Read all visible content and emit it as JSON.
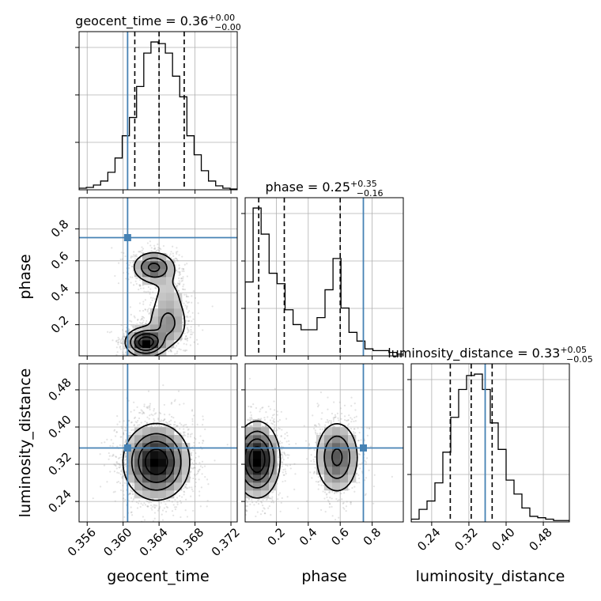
{
  "colors": {
    "truth": "#4682b4",
    "hist": "#000000",
    "quantile": "#000000",
    "grid": "#b0b0b0",
    "samples": "#999999"
  },
  "parameters": [
    {
      "key": "geocent_time",
      "label": "geocent_time",
      "ticks": [
        "0.356",
        "0.360",
        "0.364",
        "0.368",
        "0.372"
      ],
      "tick_values": [
        0.356,
        0.36,
        0.364,
        0.368,
        0.372
      ],
      "range": [
        0.3551,
        0.3727
      ],
      "truth": 0.3605
    },
    {
      "key": "phase",
      "label": "phase",
      "ticks": [
        "0.2",
        "0.4",
        "0.6",
        "0.8"
      ],
      "tick_values": [
        0.2,
        0.4,
        0.6,
        0.8
      ],
      "range": [
        0.005,
        0.995
      ],
      "truth": 0.745
    },
    {
      "key": "luminosity_distance",
      "label": "luminosity_distance",
      "ticks": [
        "0.24",
        "0.32",
        "0.40",
        "0.48"
      ],
      "tick_values": [
        0.24,
        0.32,
        0.4,
        0.48
      ],
      "range": [
        0.196,
        0.536
      ],
      "truth": 0.355
    }
  ],
  "titles": [
    {
      "text": "geocent_time = 0.36",
      "sup": "+0.00",
      "sub": "−0.00"
    },
    {
      "text": "phase = 0.25",
      "sup": "+0.35",
      "sub": "−0.16"
    },
    {
      "text": "luminosity_distance = 0.33",
      "sup": "+0.05",
      "sub": "−0.05"
    }
  ],
  "chart_data": {
    "type": "corner",
    "title": "",
    "marginals": [
      {
        "parameter": "geocent_time",
        "quantiles": [
          0.3613,
          0.364,
          0.3668
        ],
        "bin_edges": [
          0.3551,
          0.3559,
          0.3567,
          0.3575,
          0.3583,
          0.3591,
          0.3599,
          0.3607,
          0.3615,
          0.3623,
          0.3631,
          0.3639,
          0.3647,
          0.3655,
          0.3663,
          0.3671,
          0.3679,
          0.3687,
          0.3695,
          0.3703,
          0.3711,
          0.3719,
          0.3727
        ],
        "counts": [
          2,
          3,
          6,
          11,
          22,
          40,
          68,
          91,
          130,
          172,
          186,
          184,
          172,
          143,
          117,
          68,
          44,
          24,
          11,
          5,
          2,
          1
        ]
      },
      {
        "parameter": "phase",
        "quantiles": [
          0.09,
          0.25,
          0.6
        ],
        "bin_edges": [
          0.005,
          0.055,
          0.105,
          0.155,
          0.205,
          0.255,
          0.305,
          0.355,
          0.405,
          0.455,
          0.505,
          0.555,
          0.605,
          0.655,
          0.705,
          0.755,
          0.805,
          0.855,
          0.905,
          0.955,
          0.995
        ],
        "counts": [
          85,
          170,
          140,
          95,
          83,
          53,
          36,
          30,
          30,
          44,
          76,
          112,
          55,
          27,
          17,
          8,
          6,
          6,
          4,
          2
        ]
      },
      {
        "parameter": "luminosity_distance",
        "quantiles": [
          0.28,
          0.325,
          0.37
        ],
        "bin_edges": [
          0.196,
          0.213,
          0.23,
          0.247,
          0.264,
          0.281,
          0.298,
          0.315,
          0.332,
          0.349,
          0.366,
          0.383,
          0.4,
          0.417,
          0.434,
          0.451,
          0.468,
          0.485,
          0.502,
          0.519,
          0.536
        ],
        "counts": [
          2,
          9,
          15,
          28,
          50,
          75,
          95,
          105,
          106,
          95,
          71,
          52,
          30,
          20,
          10,
          4,
          3,
          2,
          1,
          1
        ]
      }
    ],
    "joints": [
      {
        "x": "geocent_time",
        "y": "phase",
        "modes": [
          {
            "x": 0.3634,
            "y": 0.56,
            "sx": 0.0012,
            "sy": 0.05,
            "w": 0.6
          },
          {
            "x": 0.3625,
            "y": 0.09,
            "sx": 0.0011,
            "sy": 0.045,
            "w": 1.0
          },
          {
            "x": 0.365,
            "y": 0.2,
            "sx": 0.0012,
            "sy": 0.08,
            "w": 0.35
          },
          {
            "x": 0.365,
            "y": 0.38,
            "sx": 0.0013,
            "sy": 0.1,
            "w": 0.15
          }
        ]
      },
      {
        "x": "geocent_time",
        "y": "luminosity_distance",
        "modes": [
          {
            "x": 0.3637,
            "y": 0.325,
            "sx": 0.0018,
            "sy": 0.04,
            "w": 1.0
          }
        ]
      },
      {
        "x": "phase",
        "y": "luminosity_distance",
        "modes": [
          {
            "x": 0.08,
            "y": 0.33,
            "sx": 0.07,
            "sy": 0.04,
            "w": 1.0
          },
          {
            "x": 0.58,
            "y": 0.335,
            "sx": 0.07,
            "sy": 0.04,
            "w": 0.6
          }
        ]
      }
    ],
    "grid": true,
    "legend": "none"
  }
}
